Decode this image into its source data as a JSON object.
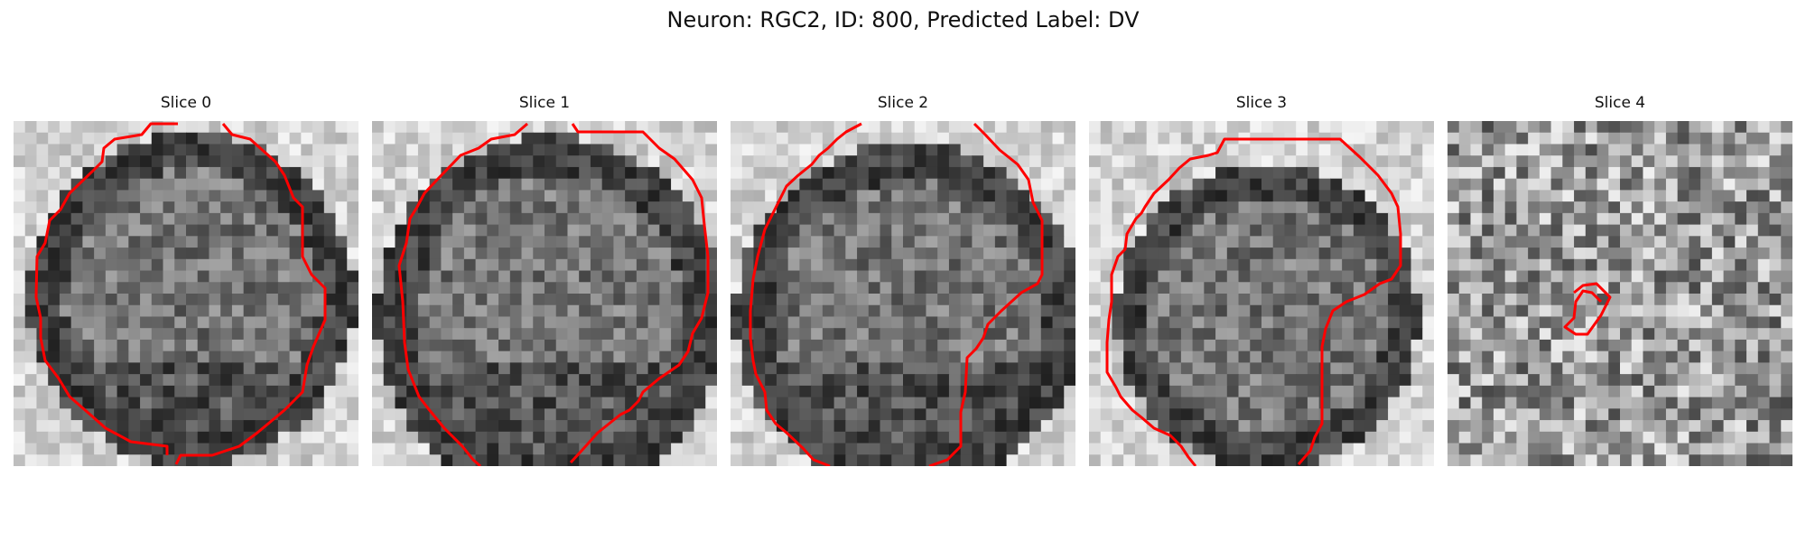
{
  "figure": {
    "title": "Neuron: RGC2, ID: 800, Predicted Label: DV",
    "contour_color": "#ff0000",
    "panels": [
      {
        "label": "Slice 0",
        "image": "grayscale-microscopy-tile",
        "pattern": "cell-edge"
      },
      {
        "label": "Slice 1",
        "image": "grayscale-microscopy-tile",
        "pattern": "cell-large"
      },
      {
        "label": "Slice 2",
        "image": "grayscale-microscopy-tile",
        "pattern": "cell-lower"
      },
      {
        "label": "Slice 3",
        "image": "grayscale-microscopy-tile",
        "pattern": "cell-center"
      },
      {
        "label": "Slice 4",
        "image": "grayscale-microscopy-tile",
        "pattern": "noise"
      }
    ]
  }
}
